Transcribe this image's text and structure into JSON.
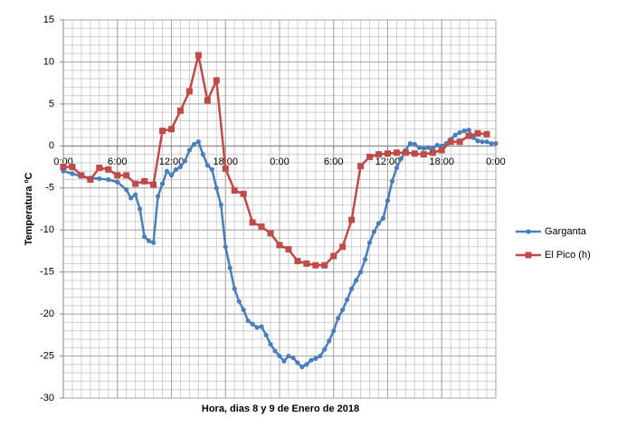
{
  "chart_data": {
    "type": "line",
    "x_label": "Hora, dias  8 y 9 de Enero de 2018",
    "y_label": "Temperatura ºC",
    "xlim": [
      0,
      48
    ],
    "xticks": [
      {
        "value": 0,
        "label": "0:00"
      },
      {
        "value": 6,
        "label": "6:00"
      },
      {
        "value": 12,
        "label": "12:00"
      },
      {
        "value": 18,
        "label": "18:00"
      },
      {
        "value": 24,
        "label": "0:00"
      },
      {
        "value": 30,
        "label": "6:00"
      },
      {
        "value": 36,
        "label": "12:00"
      },
      {
        "value": 42,
        "label": "18:00"
      },
      {
        "value": 48,
        "label": "0:00"
      }
    ],
    "ylim": [
      -30,
      15
    ],
    "yticks": [
      -30,
      -25,
      -20,
      -15,
      -10,
      -5,
      0,
      5,
      10,
      15
    ],
    "grid": true,
    "legend": "right",
    "series": [
      {
        "name": "Garganta",
        "color": "#4a7ebb",
        "marker": "circle",
        "x": [
          0,
          1,
          2,
          3,
          4,
          5,
          6,
          7,
          7.5,
          8,
          8.5,
          9,
          9.5,
          10,
          10.5,
          11,
          11.5,
          12,
          12.5,
          13,
          13.5,
          14,
          14.5,
          15,
          15.5,
          16,
          16.5,
          17,
          17.5,
          18,
          18.5,
          19,
          19.5,
          20,
          20.5,
          21,
          21.5,
          22,
          22.5,
          23,
          23.5,
          24,
          24.5,
          25,
          25.5,
          26,
          26.5,
          27,
          27.5,
          28,
          28.5,
          29,
          29.5,
          30,
          30.5,
          31,
          31.5,
          32,
          32.5,
          33,
          33.5,
          34,
          34.5,
          35,
          35.5,
          36,
          36.5,
          37,
          37.5,
          38,
          38.5,
          39,
          39.5,
          40,
          40.5,
          41,
          41.5,
          42,
          42.5,
          43,
          43.5,
          44,
          44.5,
          45,
          45.5,
          46,
          46.5,
          47,
          47.5,
          48
        ],
        "values": [
          -3,
          -3.3,
          -3.6,
          -3.8,
          -3.9,
          -4.0,
          -4.3,
          -5.2,
          -6.2,
          -5.8,
          -7.5,
          -10.8,
          -11.3,
          -11.5,
          -6.0,
          -4.5,
          -3.0,
          -3.5,
          -2.8,
          -2.5,
          -1.8,
          -0.5,
          0.2,
          0.5,
          -1.0,
          -2.3,
          -2.8,
          -5.0,
          -7,
          -12,
          -14.5,
          -17,
          -18.5,
          -19.5,
          -20.8,
          -21.2,
          -21.6,
          -21.5,
          -22.5,
          -23.6,
          -24.4,
          -25,
          -25.6,
          -25.0,
          -25.2,
          -25.8,
          -26.3,
          -26.0,
          -25.5,
          -25.3,
          -25.0,
          -24.2,
          -23.2,
          -22.0,
          -20.5,
          -19.5,
          -18.3,
          -17.0,
          -16.0,
          -15.0,
          -13.5,
          -11.5,
          -10.2,
          -9.2,
          -8.6,
          -6.5,
          -4.2,
          -2.6,
          -1.5,
          -0.5,
          0.3,
          0.2,
          -0.2,
          -0.3,
          -0.2,
          -0.3,
          0.1,
          0,
          0.3,
          0.8,
          1.3,
          1.6,
          1.8,
          1.9,
          1.0,
          0.6,
          0.5,
          0.5,
          0.3,
          0.3
        ]
      },
      {
        "name": "El Pico (h)",
        "color": "#be4b48",
        "marker": "square",
        "x": [
          0,
          1,
          2,
          3,
          4,
          5,
          6,
          7,
          8,
          9,
          10,
          11,
          12,
          13,
          14,
          15,
          16,
          17,
          18,
          19,
          20,
          21,
          22,
          23,
          24,
          25,
          26,
          27,
          28,
          29,
          30,
          31,
          32,
          33,
          34,
          35,
          36,
          37,
          38,
          39,
          40,
          41,
          42,
          43,
          44,
          45,
          46,
          47
        ],
        "values": [
          -2.5,
          -2.5,
          -3.5,
          -4.0,
          -2.6,
          -2.8,
          -3.5,
          -3.5,
          -4.5,
          -4.2,
          -4.6,
          1.8,
          2.0,
          4.2,
          6.5,
          10.8,
          5.4,
          7.8,
          -2.7,
          -5.3,
          -5.7,
          -9.1,
          -9.6,
          -10.4,
          -11.8,
          -12.3,
          -13.7,
          -14.0,
          -14.2,
          -14.2,
          -13.1,
          -12.0,
          -8.8,
          -2.4,
          -1.3,
          -1.0,
          -0.9,
          -0.8,
          -0.8,
          -0.9,
          -1.0,
          -0.8,
          -0.5,
          0.5,
          0.5,
          1.2,
          1.5,
          1.4
        ]
      }
    ]
  }
}
